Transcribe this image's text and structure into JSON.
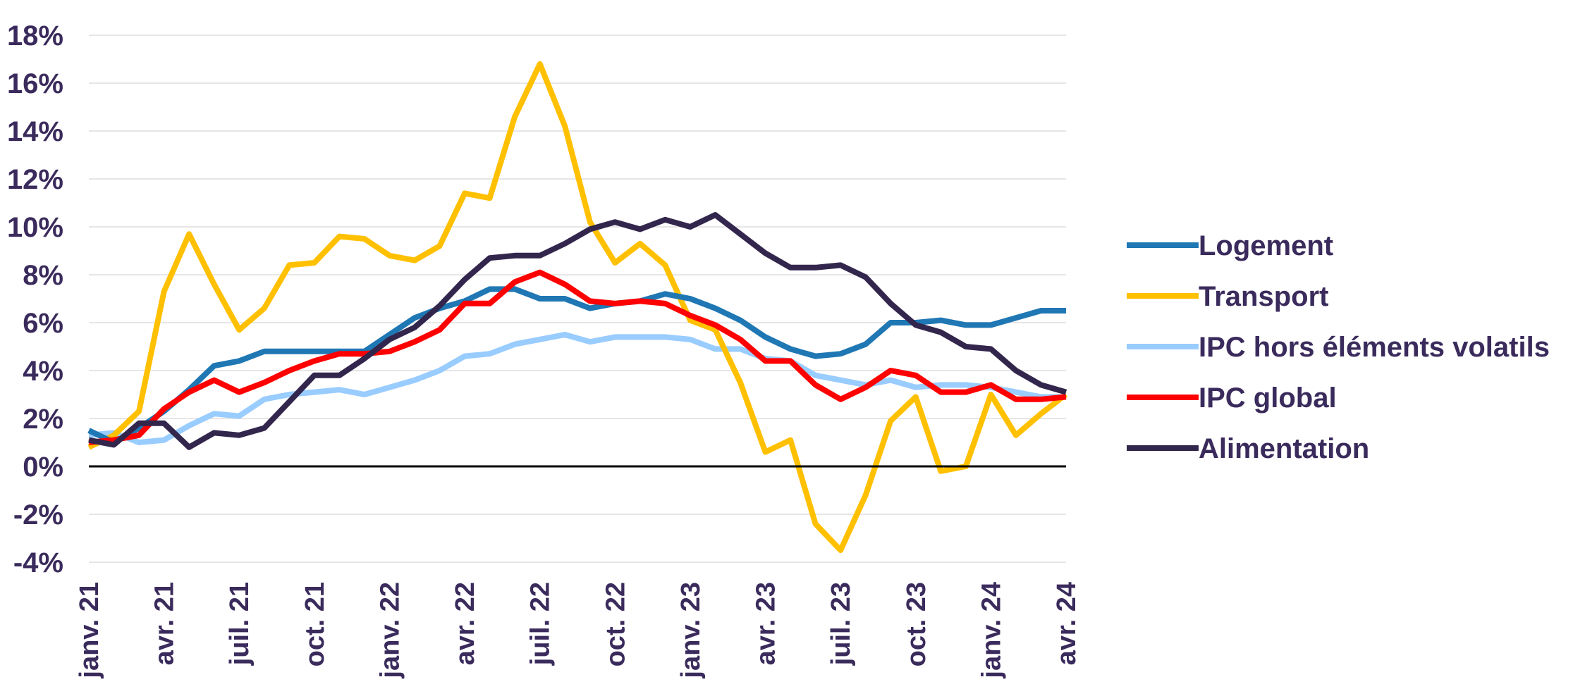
{
  "chart_data": {
    "type": "line",
    "title": "",
    "xlabel": "",
    "ylabel": "",
    "ylim": [
      -4,
      18
    ],
    "y_ticks": [
      "-4%",
      "-2%",
      "0%",
      "2%",
      "4%",
      "6%",
      "8%",
      "10%",
      "12%",
      "14%",
      "16%",
      "18%"
    ],
    "y_tick_values": [
      -4,
      -2,
      0,
      2,
      4,
      6,
      8,
      10,
      12,
      14,
      16,
      18
    ],
    "grid": true,
    "zero_line": true,
    "legend_position": "right",
    "x": [
      "janv. 21",
      "févr. 21",
      "mars 21",
      "avr. 21",
      "mai 21",
      "juin 21",
      "juil. 21",
      "août 21",
      "sept. 21",
      "oct. 21",
      "nov. 21",
      "déc. 21",
      "janv. 22",
      "févr. 22",
      "mars 22",
      "avr. 22",
      "mai 22",
      "juin 22",
      "juil. 22",
      "août 22",
      "sept. 22",
      "oct. 22",
      "nov. 22",
      "déc. 22",
      "janv. 23",
      "févr. 23",
      "mars 23",
      "avr. 23",
      "mai 23",
      "juin 23",
      "juil. 23",
      "août 23",
      "sept. 23",
      "oct. 23",
      "nov. 23",
      "déc. 23",
      "janv. 24",
      "févr. 24",
      "mars 24",
      "avr. 24"
    ],
    "x_tick_labels": [
      {
        "index": 0,
        "label": "janv. 21"
      },
      {
        "index": 3,
        "label": "avr. 21"
      },
      {
        "index": 6,
        "label": "juil. 21"
      },
      {
        "index": 9,
        "label": "oct. 21"
      },
      {
        "index": 12,
        "label": "janv. 22"
      },
      {
        "index": 15,
        "label": "avr. 22"
      },
      {
        "index": 18,
        "label": "juil. 22"
      },
      {
        "index": 21,
        "label": "oct. 22"
      },
      {
        "index": 24,
        "label": "janv. 23"
      },
      {
        "index": 27,
        "label": "avr. 23"
      },
      {
        "index": 30,
        "label": "juil. 23"
      },
      {
        "index": 33,
        "label": "oct. 23"
      },
      {
        "index": 36,
        "label": "janv. 24"
      },
      {
        "index": 39,
        "label": "avr. 24"
      }
    ],
    "series": [
      {
        "name": "IPC hors éléments volatils",
        "color": "#99ccff",
        "values": [
          1.3,
          1.4,
          1.0,
          1.1,
          1.7,
          2.2,
          2.1,
          2.8,
          3.0,
          3.1,
          3.2,
          3.0,
          3.3,
          3.6,
          4.0,
          4.6,
          4.7,
          5.1,
          5.3,
          5.5,
          5.2,
          5.4,
          5.4,
          5.4,
          5.3,
          4.9,
          4.9,
          4.5,
          4.4,
          3.8,
          3.6,
          3.4,
          3.6,
          3.3,
          3.4,
          3.4,
          3.3,
          3.1,
          2.9,
          2.9
        ]
      },
      {
        "name": "Transport",
        "color": "#ffc000",
        "values": [
          0.8,
          1.3,
          2.3,
          7.3,
          9.7,
          7.6,
          5.7,
          6.6,
          8.4,
          8.5,
          9.6,
          9.5,
          8.8,
          8.6,
          9.2,
          11.4,
          11.2,
          14.6,
          16.8,
          14.2,
          10.2,
          8.5,
          9.3,
          8.4,
          6.1,
          5.7,
          3.5,
          0.6,
          1.1,
          -2.4,
          -3.5,
          -1.2,
          1.9,
          2.9,
          -0.2,
          0.0,
          3.0,
          1.3,
          2.2,
          3.0
        ]
      },
      {
        "name": "Logement",
        "color": "#1f77b4",
        "values": [
          1.5,
          1.0,
          1.6,
          2.3,
          3.2,
          4.2,
          4.4,
          4.8,
          4.8,
          4.8,
          4.8,
          4.8,
          5.5,
          6.2,
          6.6,
          6.9,
          7.4,
          7.4,
          7.0,
          7.0,
          6.6,
          6.8,
          6.9,
          7.2,
          7.0,
          6.6,
          6.1,
          5.4,
          4.9,
          4.6,
          4.7,
          5.1,
          6.0,
          6.0,
          6.1,
          5.9,
          5.9,
          6.2,
          6.5,
          6.5
        ]
      },
      {
        "name": "IPC global",
        "color": "#ff0000",
        "values": [
          1.0,
          1.1,
          1.3,
          2.4,
          3.1,
          3.6,
          3.1,
          3.5,
          4.0,
          4.4,
          4.7,
          4.7,
          4.8,
          5.2,
          5.7,
          6.8,
          6.8,
          7.7,
          8.1,
          7.6,
          6.9,
          6.8,
          6.9,
          6.8,
          6.3,
          5.9,
          5.3,
          4.4,
          4.4,
          3.4,
          2.8,
          3.3,
          4.0,
          3.8,
          3.1,
          3.1,
          3.4,
          2.8,
          2.8,
          2.9
        ]
      },
      {
        "name": "Alimentation",
        "color": "#33264d",
        "values": [
          1.1,
          0.9,
          1.8,
          1.8,
          0.8,
          1.4,
          1.3,
          1.6,
          2.7,
          3.8,
          3.8,
          4.5,
          5.3,
          5.8,
          6.7,
          7.8,
          8.7,
          8.8,
          8.8,
          9.3,
          9.9,
          10.2,
          9.9,
          10.3,
          10.0,
          10.5,
          9.7,
          8.9,
          8.3,
          8.3,
          8.4,
          7.9,
          6.8,
          5.9,
          5.6,
          5.0,
          4.9,
          4.0,
          3.4,
          3.1
        ]
      }
    ],
    "legend": [
      {
        "name": "Logement",
        "color": "#1f77b4"
      },
      {
        "name": "Transport",
        "color": "#ffc000"
      },
      {
        "name": "IPC hors éléments volatils",
        "color": "#99ccff"
      },
      {
        "name": "IPC global",
        "color": "#ff0000"
      },
      {
        "name": "Alimentation",
        "color": "#33264d"
      }
    ]
  }
}
